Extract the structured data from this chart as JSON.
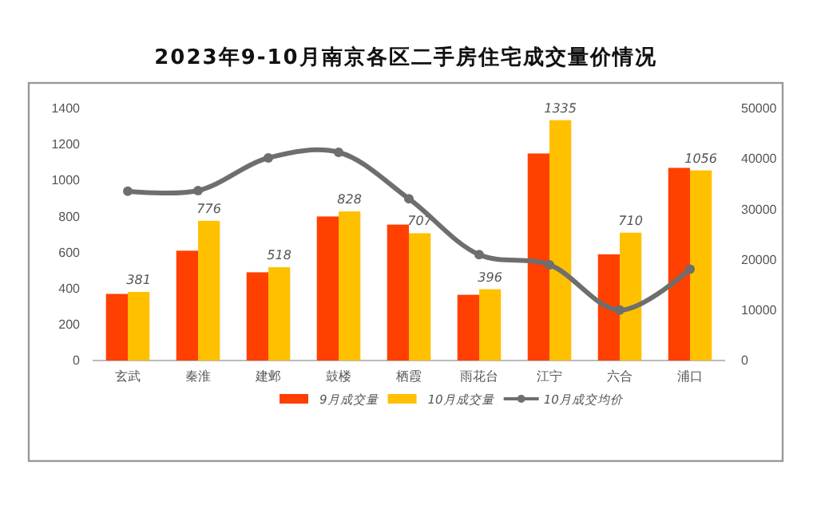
{
  "chart_data": {
    "type": "bar",
    "title": "2023年9-10月南京各区二手房住宅成交量价情况",
    "categories": [
      "玄武",
      "秦淮",
      "建邺",
      "鼓楼",
      "栖霞",
      "雨花台",
      "江宁",
      "六合",
      "浦口"
    ],
    "series": [
      {
        "name": "9月成交量",
        "color": "#ff4000",
        "values": [
          370,
          610,
          490,
          800,
          755,
          365,
          1150,
          590,
          1070
        ]
      },
      {
        "name": "10月成交量",
        "color": "#ffc000",
        "values": [
          381,
          776,
          518,
          828,
          707,
          396,
          1335,
          710,
          1056
        ],
        "value_labels": [
          "381",
          "776",
          "518",
          "828",
          "707",
          "396",
          "1335",
          "710",
          "1056"
        ]
      },
      {
        "name": "10月成交均价",
        "type": "line",
        "axis": "y2",
        "color": "#6e6e6e",
        "marker": "circle",
        "values": [
          33600,
          33700,
          40200,
          41300,
          32100,
          21000,
          19000,
          10000,
          18100
        ]
      }
    ],
    "ylim": [
      0,
      1400
    ],
    "yticks": [
      0,
      200,
      400,
      600,
      800,
      1000,
      1200,
      1400
    ],
    "y2lim": [
      0,
      50000
    ],
    "y2ticks": [
      0,
      10000,
      20000,
      30000,
      40000,
      50000
    ],
    "grid": false,
    "legend": "bottom"
  }
}
